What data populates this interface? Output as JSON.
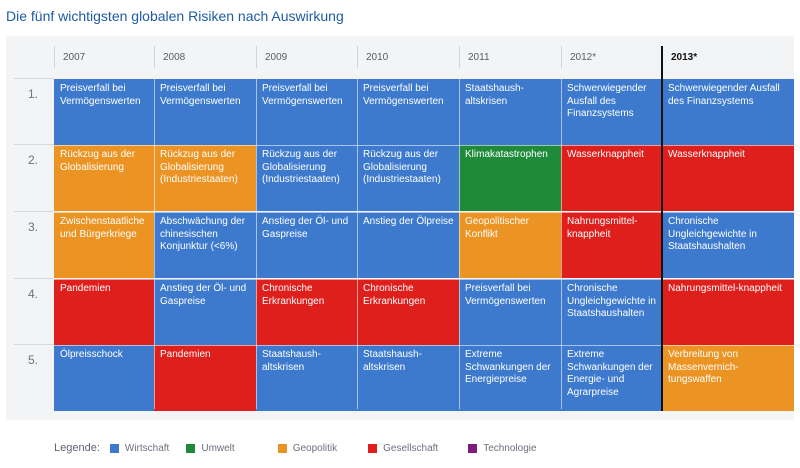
{
  "title": "Die fünf wichtigsten globalen Risiken nach Auswirkung",
  "chart_data": {
    "type": "table",
    "title": "Die fünf wichtigsten globalen Risiken nach Auswirkung",
    "years": [
      "2007",
      "2008",
      "2009",
      "2010",
      "2011",
      "2012*",
      "2013*"
    ],
    "highlight_year": "2013*",
    "ranks": [
      "1.",
      "2.",
      "3.",
      "4.",
      "5."
    ],
    "categories": {
      "wirtschaft": {
        "label": "Wirtschaft",
        "color": "#3d7ace"
      },
      "umwelt": {
        "label": "Umwelt",
        "color": "#1f8b3a"
      },
      "geopolitik": {
        "label": "Geopolitik",
        "color": "#ec9423"
      },
      "gesellschaft": {
        "label": "Gesellschaft",
        "color": "#df1f1c"
      },
      "technologie": {
        "label": "Technologie",
        "color": "#7e1b7b"
      }
    },
    "legend_title": "Legende:",
    "legend_order": [
      "wirtschaft",
      "umwelt",
      "geopolitik",
      "gesellschaft",
      "technologie"
    ],
    "rows": [
      [
        {
          "text": "Preisverfall bei Vermögenswerten",
          "category": "wirtschaft"
        },
        {
          "text": "Preisverfall bei Vermögenswerten",
          "category": "wirtschaft"
        },
        {
          "text": "Preisverfall bei Vermögenswerten",
          "category": "wirtschaft"
        },
        {
          "text": "Preisverfall bei Vermögenswerten",
          "category": "wirtschaft"
        },
        {
          "text": "Staatshaush-altskrisen",
          "category": "wirtschaft"
        },
        {
          "text": "Schwerwiegender Ausfall des Finanzsystems",
          "category": "wirtschaft"
        },
        {
          "text": "Schwerwiegender Ausfall des Finanzsystems",
          "category": "wirtschaft"
        }
      ],
      [
        {
          "text": "Rückzug aus der Globalisierung",
          "category": "geopolitik"
        },
        {
          "text": "Rückzug aus der Globalisierung (Industriestaaten)",
          "category": "geopolitik"
        },
        {
          "text": "Rückzug aus der Globalisierung (Industriestaaten)",
          "category": "wirtschaft"
        },
        {
          "text": "Rückzug aus der Globalisierung (Industriestaaten)",
          "category": "wirtschaft"
        },
        {
          "text": "Klimakatastrophen",
          "category": "umwelt"
        },
        {
          "text": "Wasserknappheit",
          "category": "gesellschaft"
        },
        {
          "text": "Wasserknappheit",
          "category": "gesellschaft"
        }
      ],
      [
        {
          "text": "Zwischenstaatliche und Bürgerkriege",
          "category": "geopolitik"
        },
        {
          "text": "Abschwächung der chinesischen Konjunktur (<6%)",
          "category": "wirtschaft"
        },
        {
          "text": "Anstieg der Öl- und Gaspreise",
          "category": "wirtschaft"
        },
        {
          "text": "Anstieg der Ölpreise",
          "category": "wirtschaft"
        },
        {
          "text": "Geopolitischer Konflikt",
          "category": "geopolitik"
        },
        {
          "text": "Nahrungsmittel-knappheit",
          "category": "gesellschaft"
        },
        {
          "text": "Chronische Ungleichgewichte in Staatshaushalten",
          "category": "wirtschaft"
        }
      ],
      [
        {
          "text": "Pandemien",
          "category": "gesellschaft"
        },
        {
          "text": "Anstieg der Öl- und Gaspreise",
          "category": "wirtschaft"
        },
        {
          "text": "Chronische Erkrankungen",
          "category": "gesellschaft"
        },
        {
          "text": "Chronische Erkrankungen",
          "category": "gesellschaft"
        },
        {
          "text": "Preisverfall bei Vermögenswerten",
          "category": "wirtschaft"
        },
        {
          "text": "Chronische Ungleichgewichte in Staatshaushalten",
          "category": "wirtschaft"
        },
        {
          "text": "Nahrungsmittel-knappheit",
          "category": "gesellschaft"
        }
      ],
      [
        {
          "text": "Ölpreisschock",
          "category": "wirtschaft"
        },
        {
          "text": "Pandemien",
          "category": "gesellschaft"
        },
        {
          "text": "Staatshaush-altskrisen",
          "category": "wirtschaft"
        },
        {
          "text": "Staatshaush-altskrisen",
          "category": "wirtschaft"
        },
        {
          "text": "Extreme Schwankungen der Energiepreise",
          "category": "wirtschaft"
        },
        {
          "text": "Extreme Schwankungen der Energie- und Agrarpreise",
          "category": "wirtschaft"
        },
        {
          "text": "Verbreitung von Massenvernich-tungswaffen",
          "category": "geopolitik"
        }
      ]
    ]
  }
}
